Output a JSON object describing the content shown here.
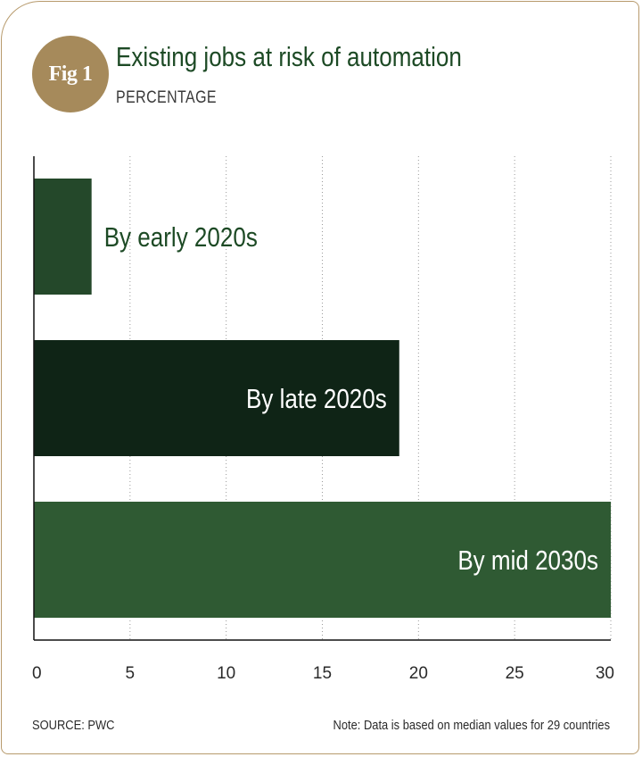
{
  "figure": {
    "badge": "Fig 1",
    "title": "Existing jobs at risk of automation",
    "subtitle": "PERCENTAGE"
  },
  "footer": {
    "source": "SOURCE: PWC",
    "note": "Note: Data is based on median values for 29 countries"
  },
  "colors": {
    "bar_early": "#24482a",
    "bar_late": "#0f2416",
    "bar_mid": "#2f5a33",
    "label_dark": "#1d4a25",
    "label_light": "#ffffff",
    "accent_gold": "#a68a5b"
  },
  "chart_data": {
    "type": "bar",
    "orientation": "horizontal",
    "title": "Existing jobs at risk of automation",
    "subtitle": "PERCENTAGE",
    "categories": [
      "By early 2020s",
      "By late 2020s",
      "By mid 2030s"
    ],
    "values": [
      3,
      19,
      30
    ],
    "xlim": [
      0,
      30
    ],
    "xticks": [
      0,
      5,
      10,
      15,
      20,
      25,
      30
    ],
    "grid": "vertical dotted",
    "label_placement": [
      "outside-end",
      "inside-end",
      "inside-end"
    ]
  }
}
